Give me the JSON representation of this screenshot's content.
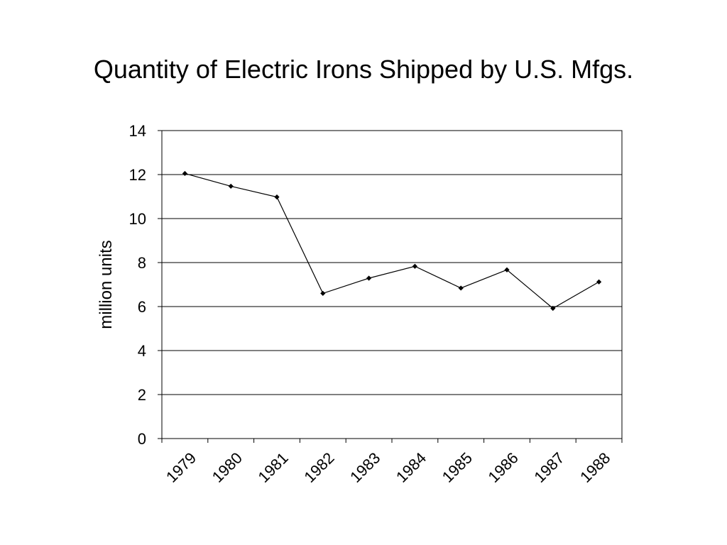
{
  "chart_data": {
    "type": "line",
    "title": "Quantity of Electric Irons Shipped by U.S. Mfgs.",
    "xlabel": "",
    "ylabel": "million units",
    "categories": [
      "1979",
      "1980",
      "1981",
      "1982",
      "1983",
      "1984",
      "1985",
      "1986",
      "1987",
      "1988"
    ],
    "values": [
      12.05,
      11.47,
      10.98,
      6.6,
      7.29,
      7.83,
      6.84,
      7.67,
      5.92,
      7.12
    ],
    "ylim": [
      0,
      14
    ],
    "yticks": [
      0,
      2,
      4,
      6,
      8,
      10,
      12,
      14
    ],
    "grid": true,
    "legend": "none",
    "line_color": "#000000",
    "marker": "diamond"
  }
}
